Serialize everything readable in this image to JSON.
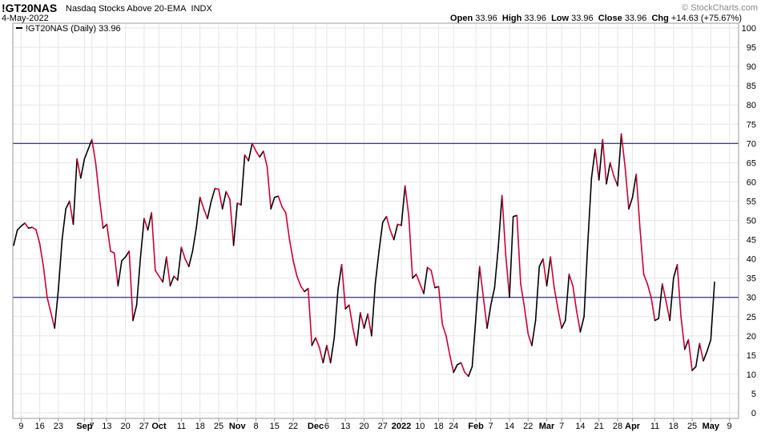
{
  "header": {
    "symbol": "!GT20NAS",
    "name": "Nasdaq Stocks Above 20-EMA",
    "exchange": "INDX",
    "date": "4-May-2022",
    "brand": "© StockCharts.com",
    "open_label": "Open",
    "open": "33.96",
    "high_label": "High",
    "high": "33.96",
    "low_label": "Low",
    "low": "33.96",
    "close_label": "Close",
    "close": "33.96",
    "chg_label": "Chg",
    "chg": "+14.63 (+75.67%)"
  },
  "legend": {
    "text": "!GT20NAS (Daily) 33.96"
  },
  "colors": {
    "up": "#000000",
    "down": "#cc0033",
    "reference": "#000080",
    "grid": "#e6e6e6"
  },
  "chart_data": {
    "type": "line",
    "ylim": [
      0,
      100
    ],
    "yticks": [
      0,
      5,
      10,
      15,
      20,
      25,
      30,
      35,
      40,
      45,
      50,
      55,
      60,
      65,
      70,
      75,
      80,
      85,
      90,
      95,
      100
    ],
    "reference_lines": [
      70,
      30
    ],
    "xticks": [
      {
        "label": "9",
        "i": 2,
        "bold": false
      },
      {
        "label": "16",
        "i": 7,
        "bold": false
      },
      {
        "label": "23",
        "i": 12,
        "bold": false
      },
      {
        "label": "Sep",
        "i": 19,
        "bold": true
      },
      {
        "label": "7",
        "i": 21,
        "bold": false
      },
      {
        "label": "13",
        "i": 25,
        "bold": false
      },
      {
        "label": "20",
        "i": 30,
        "bold": false
      },
      {
        "label": "27",
        "i": 35,
        "bold": false
      },
      {
        "label": "Oct",
        "i": 39,
        "bold": true
      },
      {
        "label": "11",
        "i": 45,
        "bold": false
      },
      {
        "label": "18",
        "i": 50,
        "bold": false
      },
      {
        "label": "25",
        "i": 55,
        "bold": false
      },
      {
        "label": "Nov",
        "i": 60,
        "bold": true
      },
      {
        "label": "8",
        "i": 65,
        "bold": false
      },
      {
        "label": "15",
        "i": 70,
        "bold": false
      },
      {
        "label": "22",
        "i": 75,
        "bold": false
      },
      {
        "label": "Dec",
        "i": 81,
        "bold": true
      },
      {
        "label": "6",
        "i": 84,
        "bold": false
      },
      {
        "label": "13",
        "i": 89,
        "bold": false
      },
      {
        "label": "20",
        "i": 94,
        "bold": false
      },
      {
        "label": "27",
        "i": 99,
        "bold": false
      },
      {
        "label": "2022",
        "i": 104,
        "bold": true
      },
      {
        "label": "10",
        "i": 109,
        "bold": false
      },
      {
        "label": "18",
        "i": 114,
        "bold": false
      },
      {
        "label": "24",
        "i": 118,
        "bold": false
      },
      {
        "label": "Feb",
        "i": 124,
        "bold": true
      },
      {
        "label": "7",
        "i": 128,
        "bold": false
      },
      {
        "label": "14",
        "i": 133,
        "bold": false
      },
      {
        "label": "22",
        "i": 138,
        "bold": false
      },
      {
        "label": "Mar",
        "i": 143,
        "bold": true
      },
      {
        "label": "7",
        "i": 147,
        "bold": false
      },
      {
        "label": "14",
        "i": 152,
        "bold": false
      },
      {
        "label": "21",
        "i": 157,
        "bold": false
      },
      {
        "label": "28",
        "i": 162,
        "bold": false
      },
      {
        "label": "Apr",
        "i": 166,
        "bold": true
      },
      {
        "label": "11",
        "i": 172,
        "bold": false
      },
      {
        "label": "18",
        "i": 177,
        "bold": false
      },
      {
        "label": "25",
        "i": 182,
        "bold": false
      },
      {
        "label": "May",
        "i": 187,
        "bold": true
      },
      {
        "label": "9",
        "i": 192,
        "bold": false
      }
    ],
    "values": [
      43.5,
      47.5,
      48.5,
      49.3,
      48,
      48.2,
      47.6,
      44,
      38,
      30,
      26,
      22,
      32,
      45,
      53,
      55,
      49,
      66,
      61,
      66,
      68.5,
      71,
      65,
      56,
      48,
      49,
      42,
      41.5,
      33,
      39.5,
      40.5,
      42,
      24,
      28,
      40,
      50.5,
      47.5,
      52,
      37,
      35.5,
      34,
      40.5,
      33,
      35.5,
      34.5,
      43,
      40,
      38,
      42,
      48,
      56,
      53,
      50.5,
      55,
      58.3,
      58.1,
      53,
      57.5,
      55.5,
      43.5,
      54.5,
      54,
      67,
      65.5,
      70,
      68,
      66.5,
      68,
      64,
      53,
      56,
      56.3,
      53.5,
      52,
      45,
      39.5,
      35.5,
      33,
      31.5,
      32.3,
      17.5,
      19.5,
      17,
      13,
      17.5,
      13,
      19.5,
      32,
      38.5,
      27,
      28,
      22,
      17.5,
      26,
      22,
      25.7,
      20,
      33.5,
      42,
      49.5,
      51,
      47.5,
      45,
      49,
      48.7,
      59,
      51,
      35,
      36,
      33.5,
      31,
      37.8,
      37,
      32.5,
      32.8,
      23,
      20,
      15,
      10.5,
      12.5,
      13,
      10.5,
      9.5,
      12,
      25,
      38,
      30,
      22,
      28,
      32.5,
      43,
      56.5,
      41,
      30,
      51,
      51.3,
      33.5,
      27.5,
      20.5,
      17.5,
      24,
      38,
      40,
      33,
      40.5,
      32.5,
      27,
      22,
      24,
      36,
      33,
      26.5,
      21,
      25,
      44,
      61,
      68.5,
      60.5,
      71,
      59.5,
      65,
      61.5,
      59,
      72.5,
      64,
      53,
      56,
      62,
      48,
      36,
      33.5,
      30,
      24,
      24.5,
      33.5,
      29,
      24,
      35,
      38.5,
      25,
      16.5,
      19,
      11,
      12,
      18,
      13.5,
      16,
      19,
      33.96
    ]
  }
}
